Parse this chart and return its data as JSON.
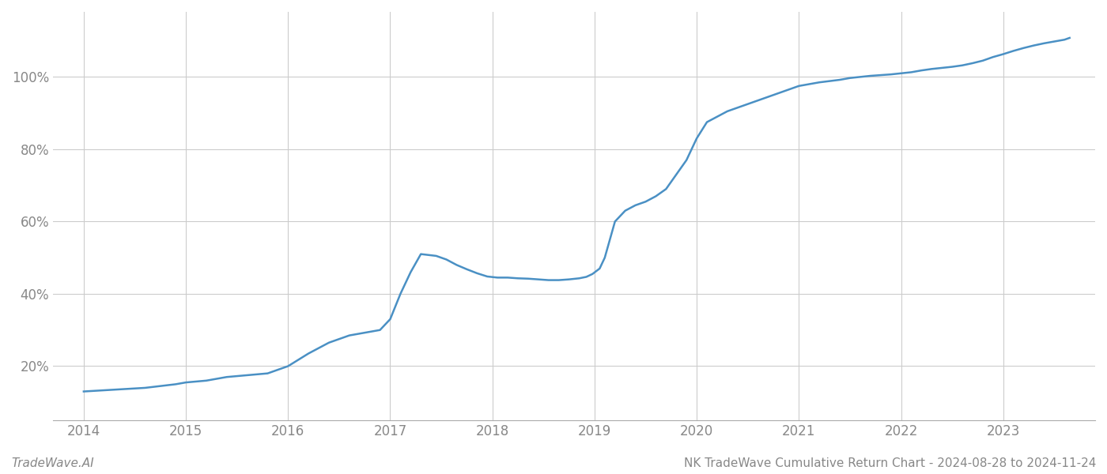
{
  "title": "NK TradeWave Cumulative Return Chart - 2024-08-28 to 2024-11-24",
  "watermark": "TradeWave.AI",
  "line_color": "#4a90c4",
  "background_color": "#ffffff",
  "grid_color": "#cccccc",
  "x_years": [
    2014,
    2015,
    2016,
    2017,
    2018,
    2019,
    2020,
    2021,
    2022,
    2023
  ],
  "data_points": [
    [
      2014.0,
      0.13
    ],
    [
      2014.3,
      0.135
    ],
    [
      2014.6,
      0.14
    ],
    [
      2014.9,
      0.15
    ],
    [
      2015.0,
      0.155
    ],
    [
      2015.2,
      0.16
    ],
    [
      2015.4,
      0.17
    ],
    [
      2015.6,
      0.175
    ],
    [
      2015.8,
      0.18
    ],
    [
      2016.0,
      0.2
    ],
    [
      2016.2,
      0.235
    ],
    [
      2016.4,
      0.265
    ],
    [
      2016.6,
      0.285
    ],
    [
      2016.8,
      0.295
    ],
    [
      2016.9,
      0.3
    ],
    [
      2017.0,
      0.33
    ],
    [
      2017.1,
      0.4
    ],
    [
      2017.2,
      0.46
    ],
    [
      2017.3,
      0.51
    ],
    [
      2017.45,
      0.505
    ],
    [
      2017.55,
      0.495
    ],
    [
      2017.65,
      0.48
    ],
    [
      2017.75,
      0.468
    ],
    [
      2017.85,
      0.457
    ],
    [
      2017.95,
      0.448
    ],
    [
      2018.05,
      0.445
    ],
    [
      2018.15,
      0.445
    ],
    [
      2018.25,
      0.443
    ],
    [
      2018.35,
      0.442
    ],
    [
      2018.45,
      0.44
    ],
    [
      2018.55,
      0.438
    ],
    [
      2018.65,
      0.438
    ],
    [
      2018.75,
      0.44
    ],
    [
      2018.85,
      0.443
    ],
    [
      2018.92,
      0.447
    ],
    [
      2018.98,
      0.455
    ],
    [
      2019.05,
      0.47
    ],
    [
      2019.1,
      0.5
    ],
    [
      2019.15,
      0.55
    ],
    [
      2019.2,
      0.6
    ],
    [
      2019.3,
      0.63
    ],
    [
      2019.4,
      0.645
    ],
    [
      2019.5,
      0.655
    ],
    [
      2019.6,
      0.67
    ],
    [
      2019.7,
      0.69
    ],
    [
      2019.8,
      0.73
    ],
    [
      2019.9,
      0.77
    ],
    [
      2020.0,
      0.83
    ],
    [
      2020.1,
      0.875
    ],
    [
      2020.2,
      0.89
    ],
    [
      2020.3,
      0.905
    ],
    [
      2020.5,
      0.925
    ],
    [
      2020.7,
      0.945
    ],
    [
      2020.9,
      0.965
    ],
    [
      2021.0,
      0.975
    ],
    [
      2021.2,
      0.985
    ],
    [
      2021.4,
      0.992
    ],
    [
      2021.5,
      0.997
    ],
    [
      2021.6,
      1.0
    ],
    [
      2021.7,
      1.003
    ],
    [
      2021.8,
      1.005
    ],
    [
      2021.9,
      1.007
    ],
    [
      2022.0,
      1.01
    ],
    [
      2022.1,
      1.013
    ],
    [
      2022.2,
      1.018
    ],
    [
      2022.3,
      1.022
    ],
    [
      2022.4,
      1.025
    ],
    [
      2022.5,
      1.028
    ],
    [
      2022.6,
      1.032
    ],
    [
      2022.7,
      1.038
    ],
    [
      2022.8,
      1.045
    ],
    [
      2022.9,
      1.055
    ],
    [
      2023.0,
      1.063
    ],
    [
      2023.1,
      1.072
    ],
    [
      2023.2,
      1.08
    ],
    [
      2023.3,
      1.087
    ],
    [
      2023.4,
      1.093
    ],
    [
      2023.5,
      1.098
    ],
    [
      2023.6,
      1.103
    ],
    [
      2023.65,
      1.108
    ]
  ],
  "ylim": [
    0.05,
    1.18
  ],
  "xlim": [
    2013.7,
    2023.9
  ],
  "yticks": [
    0.2,
    0.4,
    0.6,
    0.8,
    1.0
  ],
  "title_fontsize": 11,
  "watermark_fontsize": 11,
  "tick_fontsize": 12,
  "line_width": 1.8
}
